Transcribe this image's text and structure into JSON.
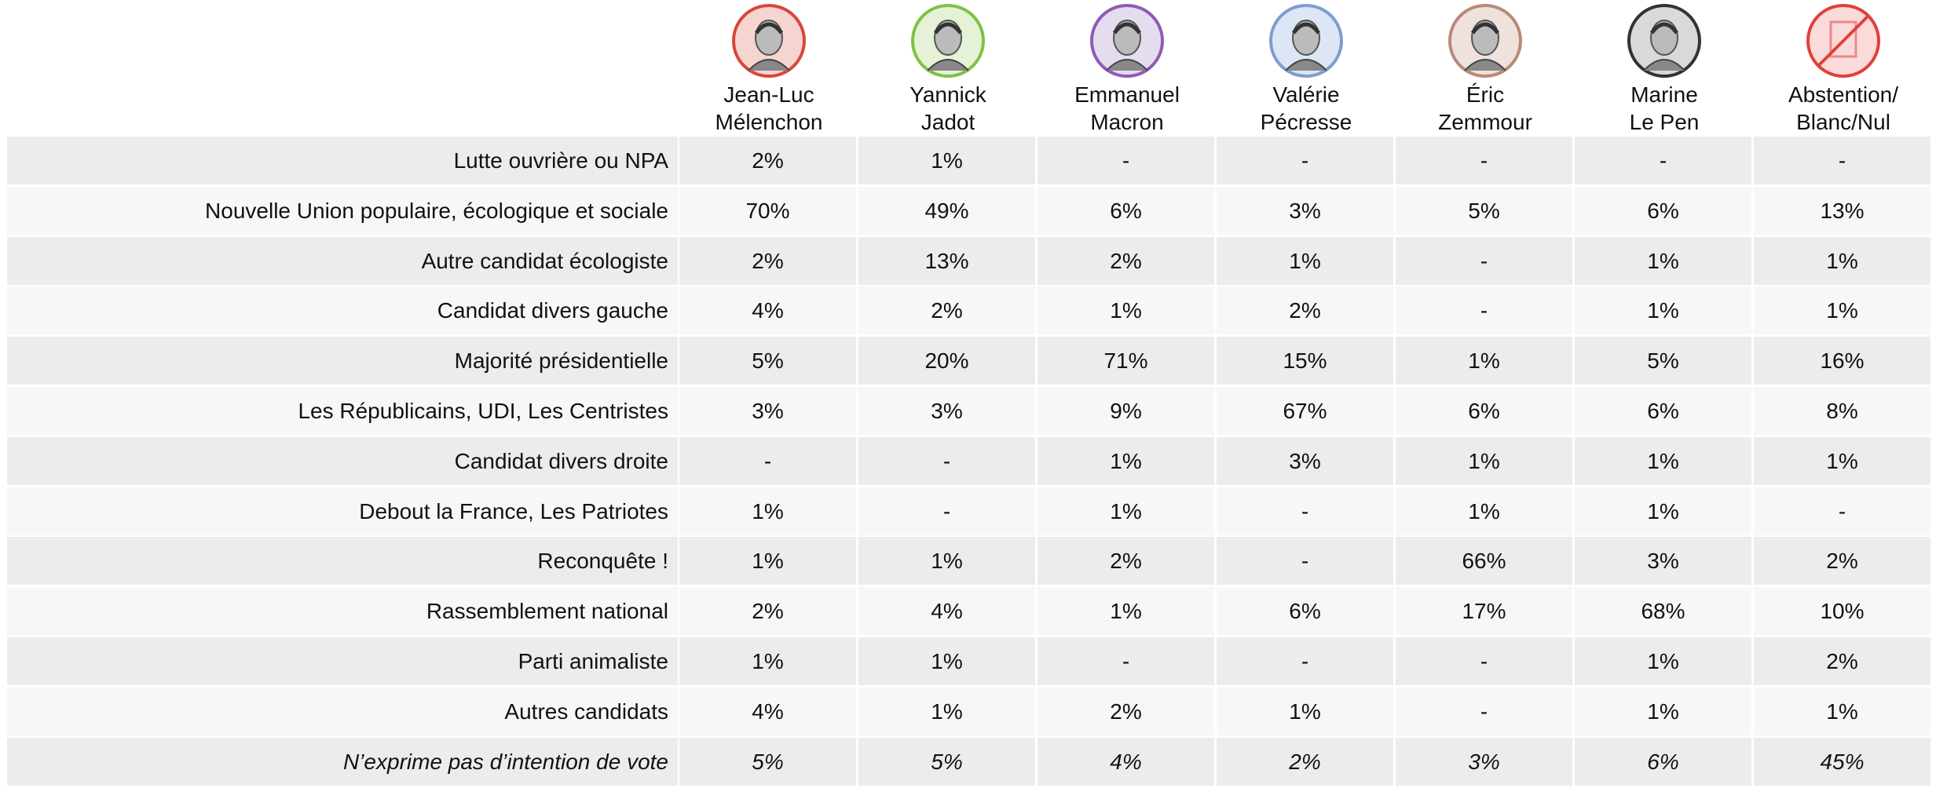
{
  "columns": [
    [
      "Jean-Luc",
      "Mélenchon"
    ],
    [
      "Yannick",
      "Jadot"
    ],
    [
      "Emmanuel",
      "Macron"
    ],
    [
      "Valérie",
      "Pécresse"
    ],
    [
      "Éric",
      "Zemmour"
    ],
    [
      "Marine",
      "Le Pen"
    ],
    [
      "Abstention/",
      "Blanc/Nul"
    ]
  ],
  "rows": [
    {
      "label": "Lutte ouvrière ou NPA",
      "cells": [
        "2%",
        "1%",
        "-",
        "-",
        "-",
        "-",
        "-"
      ]
    },
    {
      "label": "Nouvelle Union populaire, écologique et sociale",
      "cells": [
        "70%",
        "49%",
        "6%",
        "3%",
        "5%",
        "6%",
        "13%"
      ]
    },
    {
      "label": "Autre candidat écologiste",
      "cells": [
        "2%",
        "13%",
        "2%",
        "1%",
        "-",
        "1%",
        "1%"
      ]
    },
    {
      "label": "Candidat divers gauche",
      "cells": [
        "4%",
        "2%",
        "1%",
        "2%",
        "-",
        "1%",
        "1%"
      ]
    },
    {
      "label": "Majorité présidentielle",
      "cells": [
        "5%",
        "20%",
        "71%",
        "15%",
        "1%",
        "5%",
        "16%"
      ]
    },
    {
      "label": "Les Républicains, UDI, Les Centristes",
      "cells": [
        "3%",
        "3%",
        "9%",
        "67%",
        "6%",
        "6%",
        "8%"
      ]
    },
    {
      "label": "Candidat divers droite",
      "cells": [
        "-",
        "-",
        "1%",
        "3%",
        "1%",
        "1%",
        "1%"
      ]
    },
    {
      "label": "Debout la France, Les Patriotes",
      "cells": [
        "1%",
        "-",
        "1%",
        "-",
        "1%",
        "1%",
        "-"
      ]
    },
    {
      "label": "Reconquête !",
      "cells": [
        "1%",
        "1%",
        "2%",
        "-",
        "66%",
        "3%",
        "2%"
      ]
    },
    {
      "label": "Rassemblement national",
      "cells": [
        "2%",
        "4%",
        "1%",
        "6%",
        "17%",
        "68%",
        "10%"
      ]
    },
    {
      "label": "Parti animaliste",
      "cells": [
        "1%",
        "1%",
        "-",
        "-",
        "-",
        "1%",
        "2%"
      ]
    },
    {
      "label": "Autres candidats",
      "cells": [
        "4%",
        "1%",
        "2%",
        "1%",
        "-",
        "1%",
        "1%"
      ]
    },
    {
      "label": "N’exprime pas d’intention de vote",
      "cells": [
        "5%",
        "5%",
        "4%",
        "2%",
        "3%",
        "6%",
        "45%"
      ]
    }
  ]
}
